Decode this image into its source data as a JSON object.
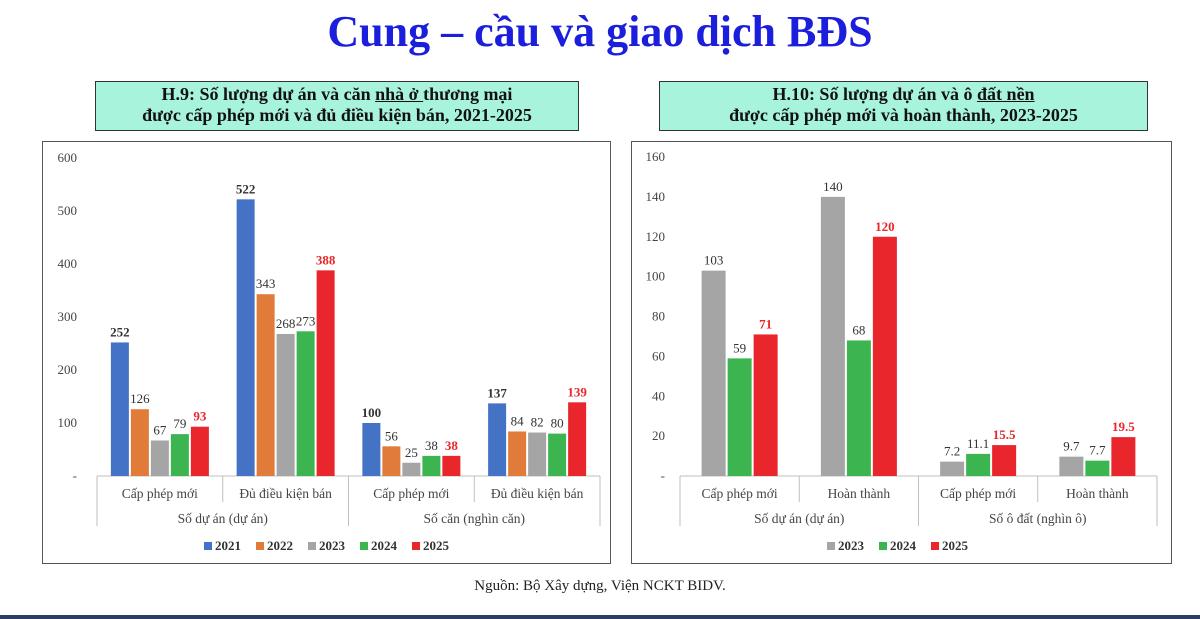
{
  "title": "Cung – cầu và giao dịch BĐS",
  "source": "Nguồn: Bộ Xây dựng, Viện NCKT BIDV.",
  "colors": {
    "2021": "#4472c4",
    "2022": "#e07b39",
    "2023": "#a5a5a5",
    "2024": "#3cb551",
    "2025": "#e8262b"
  },
  "chart_data": [
    {
      "type": "bar",
      "title_prefix": "H.9: Số lượng dự án và căn ",
      "title_underlined": "nhà ở ",
      "title_suffix": "thương mại",
      "title_line2": "được cấp phép mới và đủ điều kiện bán, 2021-2025",
      "ylim": [
        0,
        600
      ],
      "yticks": [
        0,
        100,
        200,
        300,
        400,
        500,
        600
      ],
      "ytick_labels": [
        "-",
        "100",
        "200",
        "300",
        "400",
        "500",
        "600"
      ],
      "groups": [
        "Số dự án (dự án)",
        "Số căn (nghìn căn)"
      ],
      "categories": [
        "Cấp phép mới",
        "Đủ điều kiện bán",
        "Cấp phép mới",
        "Đủ điều kiện bán"
      ],
      "series": [
        {
          "name": "2021",
          "values": [
            252,
            522,
            100,
            137
          ]
        },
        {
          "name": "2022",
          "values": [
            126,
            343,
            56,
            84
          ]
        },
        {
          "name": "2023",
          "values": [
            67,
            268,
            25,
            82
          ]
        },
        {
          "name": "2024",
          "values": [
            79,
            273,
            38,
            80
          ]
        },
        {
          "name": "2025",
          "values": [
            93,
            388,
            38,
            139
          ]
        }
      ],
      "labels": [
        [
          "252",
          "522",
          "100",
          "137"
        ],
        [
          "126",
          "343",
          "56",
          "84"
        ],
        [
          "67",
          "268",
          "25",
          "82"
        ],
        [
          "79",
          "273",
          "38",
          "80"
        ],
        [
          "93",
          "388",
          "38",
          "139"
        ]
      ],
      "legend": "bottom"
    },
    {
      "type": "bar",
      "title_prefix": "H.10: Số lượng dự án và ô ",
      "title_underlined": "đất nền",
      "title_suffix": "",
      "title_line2": "được cấp phép mới và hoàn thành, 2023-2025",
      "ylim": [
        0,
        160
      ],
      "yticks": [
        0,
        20,
        40,
        60,
        80,
        100,
        120,
        140,
        160
      ],
      "ytick_labels": [
        "-",
        "20",
        "40",
        "60",
        "80",
        "100",
        "120",
        "140",
        "160"
      ],
      "groups": [
        "Số dự án (dự án)",
        "Số ô đất (nghìn ô)"
      ],
      "categories": [
        "Cấp phép mới",
        "Hoàn thành",
        "Cấp phép mới",
        "Hoàn thành"
      ],
      "series": [
        {
          "name": "2023",
          "values": [
            103,
            140,
            7.2,
            9.7
          ]
        },
        {
          "name": "2024",
          "values": [
            59,
            68,
            11.1,
            7.7
          ]
        },
        {
          "name": "2025",
          "values": [
            71,
            120,
            15.5,
            19.5
          ]
        }
      ],
      "labels": [
        [
          "103",
          "140",
          "7.2",
          "9.7"
        ],
        [
          "59",
          "68",
          "11.1",
          "7.7"
        ],
        [
          "71",
          "120",
          "15.5",
          "19.5"
        ]
      ],
      "legend": "bottom"
    }
  ]
}
